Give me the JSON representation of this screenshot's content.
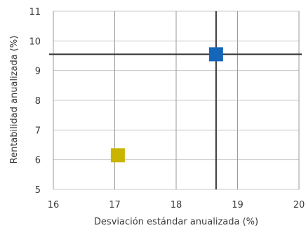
{
  "chart_data": {
    "type": "scatter",
    "title": "",
    "xlabel": "Desviación estándar anualizada (%)",
    "ylabel": "Rentabilidad anualizada (%)",
    "xlim": [
      16,
      20
    ],
    "ylim": [
      5,
      11
    ],
    "x_ticks": [
      16,
      17,
      18,
      19,
      20
    ],
    "y_ticks": [
      5,
      6,
      7,
      8,
      9,
      10,
      11
    ],
    "grid": true,
    "points": [
      {
        "x": 18.65,
        "y": 9.55,
        "color": "#1565b8"
      },
      {
        "x": 17.05,
        "y": 6.15,
        "color": "#c9b400"
      }
    ],
    "reference_lines": {
      "x": 18.65,
      "y": 9.55,
      "color": "#333333"
    }
  }
}
